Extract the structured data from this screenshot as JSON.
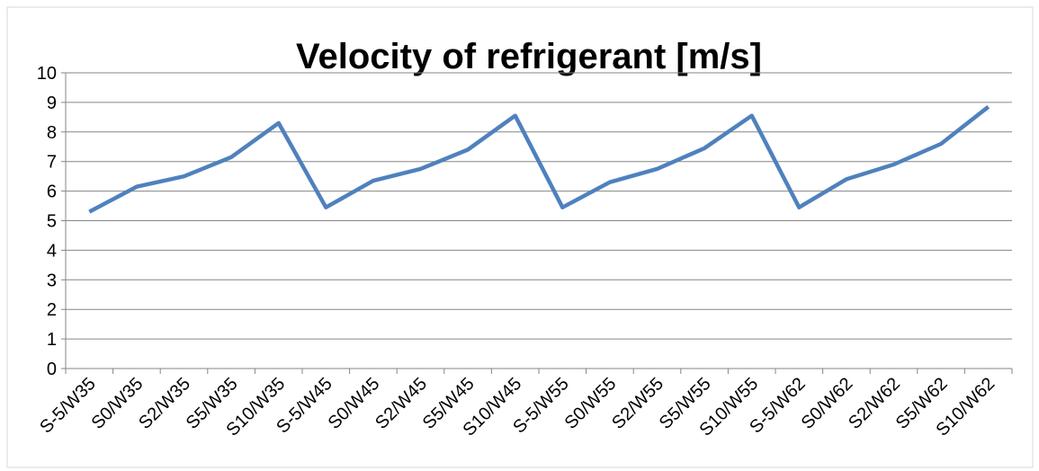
{
  "chart_data": {
    "type": "line",
    "title": "Velocity of refrigerant [m/s]",
    "categories": [
      "S-5/W35",
      "S0/W35",
      "S2/W35",
      "S5/W35",
      "S10/W35",
      "S-5/W45",
      "S0/W45",
      "S2/W45",
      "S5/W45",
      "S10/W45",
      "S-5/W55",
      "S0/W55",
      "S2/W55",
      "S5/W55",
      "S10/W55",
      "S-5/W62",
      "S0/W62",
      "S2/W62",
      "S5/W62",
      "S10/W62"
    ],
    "values": [
      5.3,
      6.15,
      6.5,
      7.15,
      8.3,
      5.45,
      6.35,
      6.75,
      7.4,
      8.55,
      5.45,
      6.3,
      6.75,
      7.45,
      8.55,
      5.45,
      6.4,
      6.9,
      7.6,
      8.85
    ],
    "color": "#4f81bd",
    "ylim": [
      0,
      10
    ],
    "yticks": [
      0,
      1,
      2,
      3,
      4,
      5,
      6,
      7,
      8,
      9,
      10
    ],
    "grid": true
  }
}
